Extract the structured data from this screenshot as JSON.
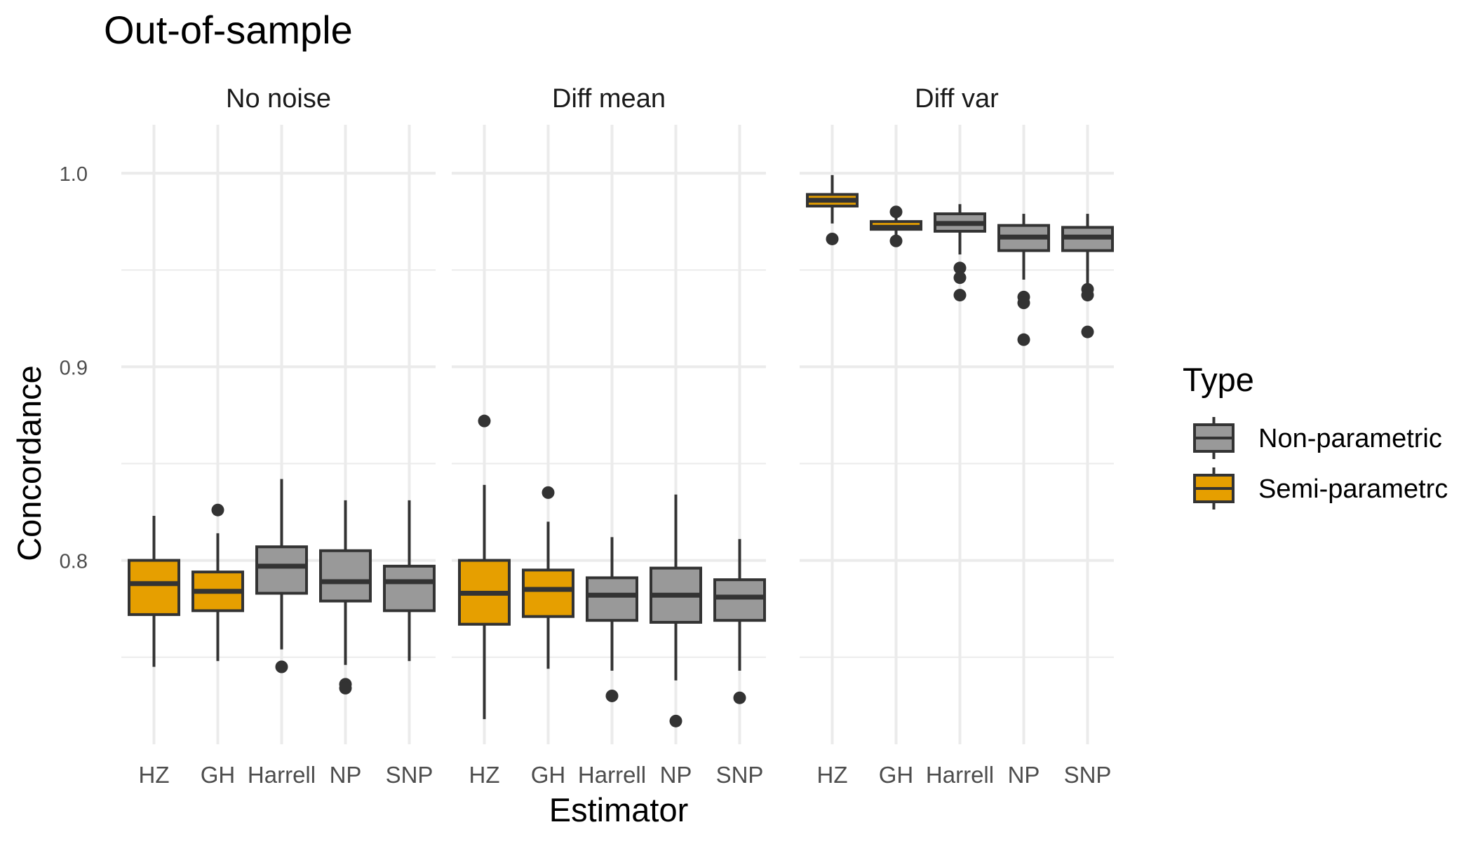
{
  "chart_data": {
    "type": "boxplot",
    "title": "Out-of-sample",
    "xlabel": "Estimator",
    "ylabel": "Concordance",
    "ylim": [
      0.705,
      1.025
    ],
    "yticks": [
      0.8,
      0.9,
      1.0
    ],
    "ytick_labels": [
      "0.8",
      "0.9",
      "1.0"
    ],
    "grid": true,
    "legend": {
      "title": "Type",
      "placement": "right",
      "entries": [
        {
          "label": "Non-parametric",
          "color": "#999999"
        },
        {
          "label": "Semi-parametrc",
          "color": "#E69F00"
        }
      ]
    },
    "categories": [
      "HZ",
      "GH",
      "Harrell",
      "NP",
      "SNP"
    ],
    "category_types": [
      "Semi-parametrc",
      "Semi-parametrc",
      "Non-parametric",
      "Non-parametric",
      "Non-parametric"
    ],
    "colors": {
      "Semi-parametrc": "#E69F00",
      "Non-parametric": "#999999"
    },
    "panels": [
      {
        "label": "No noise",
        "boxes": [
          {
            "x": "HZ",
            "min": 0.745,
            "q1": 0.772,
            "median": 0.788,
            "q3": 0.8,
            "max": 0.823,
            "outliers": []
          },
          {
            "x": "GH",
            "min": 0.748,
            "q1": 0.774,
            "median": 0.784,
            "q3": 0.794,
            "max": 0.814,
            "outliers": [
              0.826
            ]
          },
          {
            "x": "Harrell",
            "min": 0.754,
            "q1": 0.783,
            "median": 0.797,
            "q3": 0.807,
            "max": 0.842,
            "outliers": [
              0.745
            ]
          },
          {
            "x": "NP",
            "min": 0.746,
            "q1": 0.779,
            "median": 0.789,
            "q3": 0.805,
            "max": 0.831,
            "outliers": [
              0.736,
              0.734
            ]
          },
          {
            "x": "SNP",
            "min": 0.748,
            "q1": 0.774,
            "median": 0.789,
            "q3": 0.797,
            "max": 0.831,
            "outliers": []
          }
        ]
      },
      {
        "label": "Diff mean",
        "boxes": [
          {
            "x": "HZ",
            "min": 0.718,
            "q1": 0.767,
            "median": 0.783,
            "q3": 0.8,
            "max": 0.839,
            "outliers": [
              0.872
            ]
          },
          {
            "x": "GH",
            "min": 0.744,
            "q1": 0.771,
            "median": 0.785,
            "q3": 0.795,
            "max": 0.82,
            "outliers": [
              0.835
            ]
          },
          {
            "x": "Harrell",
            "min": 0.743,
            "q1": 0.769,
            "median": 0.782,
            "q3": 0.791,
            "max": 0.812,
            "outliers": [
              0.73
            ]
          },
          {
            "x": "NP",
            "min": 0.738,
            "q1": 0.768,
            "median": 0.782,
            "q3": 0.796,
            "max": 0.834,
            "outliers": [
              0.717
            ]
          },
          {
            "x": "SNP",
            "min": 0.743,
            "q1": 0.769,
            "median": 0.781,
            "q3": 0.79,
            "max": 0.811,
            "outliers": [
              0.729
            ]
          }
        ]
      },
      {
        "label": "Diff var",
        "boxes": [
          {
            "x": "HZ",
            "min": 0.974,
            "q1": 0.983,
            "median": 0.986,
            "q3": 0.989,
            "max": 0.999,
            "outliers": [
              0.966
            ]
          },
          {
            "x": "GH",
            "min": 0.968,
            "q1": 0.971,
            "median": 0.972,
            "q3": 0.975,
            "max": 0.977,
            "outliers": [
              0.98,
              0.965
            ]
          },
          {
            "x": "Harrell",
            "min": 0.958,
            "q1": 0.97,
            "median": 0.974,
            "q3": 0.979,
            "max": 0.984,
            "outliers": [
              0.951,
              0.946,
              0.937
            ]
          },
          {
            "x": "NP",
            "min": 0.945,
            "q1": 0.96,
            "median": 0.967,
            "q3": 0.973,
            "max": 0.979,
            "outliers": [
              0.936,
              0.933,
              0.914
            ]
          },
          {
            "x": "SNP",
            "min": 0.943,
            "q1": 0.96,
            "median": 0.967,
            "q3": 0.972,
            "max": 0.979,
            "outliers": [
              0.94,
              0.937,
              0.918
            ]
          }
        ]
      }
    ]
  }
}
